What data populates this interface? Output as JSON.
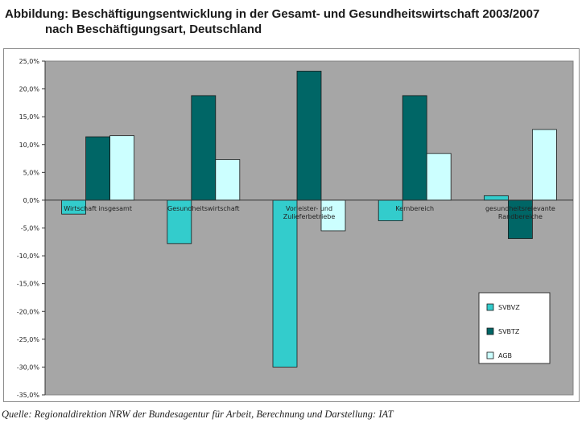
{
  "title_line1": "Abbildung: Beschäftigungsentwicklung in der Gesamt- und Gesundheitswirtschaft 2003/2007",
  "title_line2": "nach Beschäftigungsart, Deutschland",
  "source": "Quelle: Regionaldirektion NRW der Bundesagentur für Arbeit, Berechnung und Darstellung: IAT",
  "chart_data": {
    "type": "bar",
    "categories": [
      [
        "Wirtschaft insgesamt"
      ],
      [
        "Gesundheitswirtschaft"
      ],
      [
        "Vorleister- und",
        "Zulieferbetriebe"
      ],
      [
        "Kernbereich"
      ],
      [
        "gesundheitsrelevante",
        "Randbereiche"
      ]
    ],
    "series": [
      {
        "name": "SVBVZ",
        "color": "#33cccc",
        "values": [
          -2.5,
          -7.8,
          -30.0,
          -3.7,
          0.8
        ]
      },
      {
        "name": "SVBTZ",
        "color": "#006666",
        "values": [
          11.4,
          18.8,
          23.2,
          18.8,
          -6.9
        ]
      },
      {
        "name": "AGB",
        "color": "#ccffff",
        "values": [
          11.6,
          7.3,
          -5.5,
          8.4,
          12.7
        ]
      }
    ],
    "ylim": [
      -35,
      25
    ],
    "yticks": [
      "25,0%",
      "20,0%",
      "15,0%",
      "10,0%",
      "5,0%",
      "0,0%",
      "-5,0%",
      "-10,0%",
      "-15,0%",
      "-20,0%",
      "-25,0%",
      "-30,0%",
      "-35,0%"
    ],
    "plot_background": "#a6a6a6",
    "grid": false,
    "legend_position": "bottom-right"
  }
}
